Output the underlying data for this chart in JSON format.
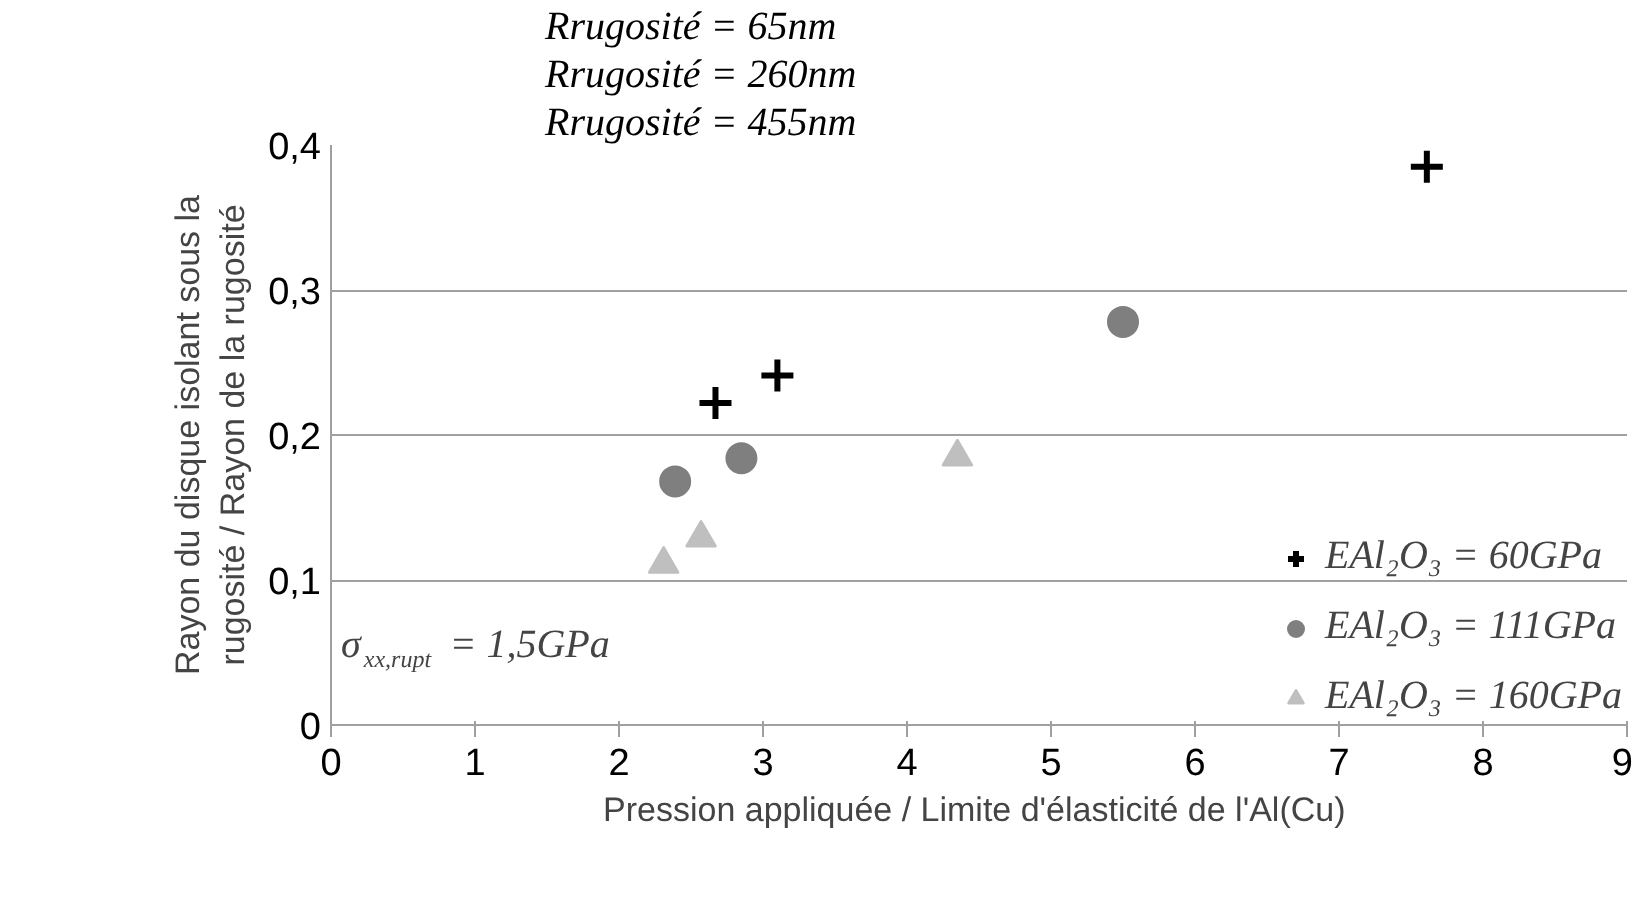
{
  "chart_data": {
    "type": "scatter",
    "xlabel": "Pression appliquée  / Limite d'élasticité de l'Al(Cu)",
    "ylabel": "Rayon du disque isolant sous la\nrugosité / Rayon de la rugosité",
    "xlim": [
      0,
      9
    ],
    "ylim": [
      0,
      0.4
    ],
    "xticks": [
      0,
      1,
      2,
      3,
      4,
      5,
      6,
      7,
      8,
      9
    ],
    "yticks": [
      0,
      {
        "value": 0.1,
        "label": "0,1"
      },
      {
        "value": 0.2,
        "label": "0,2"
      },
      {
        "value": 0.3,
        "label": "0,3"
      },
      {
        "value": 0.4,
        "label": "0,4"
      }
    ],
    "grid": "y",
    "legend": "bottom right",
    "series": [
      {
        "name": "EAl₂O₃ = 60GPa",
        "color": "#000000",
        "marker": "cross",
        "x": [
          2.67,
          3.1,
          7.61
        ],
        "values": [
          0.222,
          0.241,
          0.385
        ]
      },
      {
        "name": "EAl₂O₃ = 111GPa",
        "color": "#7f7f7f",
        "marker": "circle",
        "x": [
          2.39,
          2.85,
          5.5
        ],
        "values": [
          0.168,
          0.184,
          0.278
        ]
      },
      {
        "name": "EAl₂O₃ = 160GPa",
        "color": "#bfbfbf",
        "marker": "triangle",
        "x": [
          2.31,
          2.57,
          4.35
        ],
        "values": [
          0.111,
          0.129,
          0.185
        ]
      }
    ],
    "annotations": [
      "Rrugosité = 65nm",
      "Rrugosité = 260nm",
      "Rrugosité = 455nm",
      "σ$_{xx,rupt}$ = 1,5GPa"
    ]
  }
}
